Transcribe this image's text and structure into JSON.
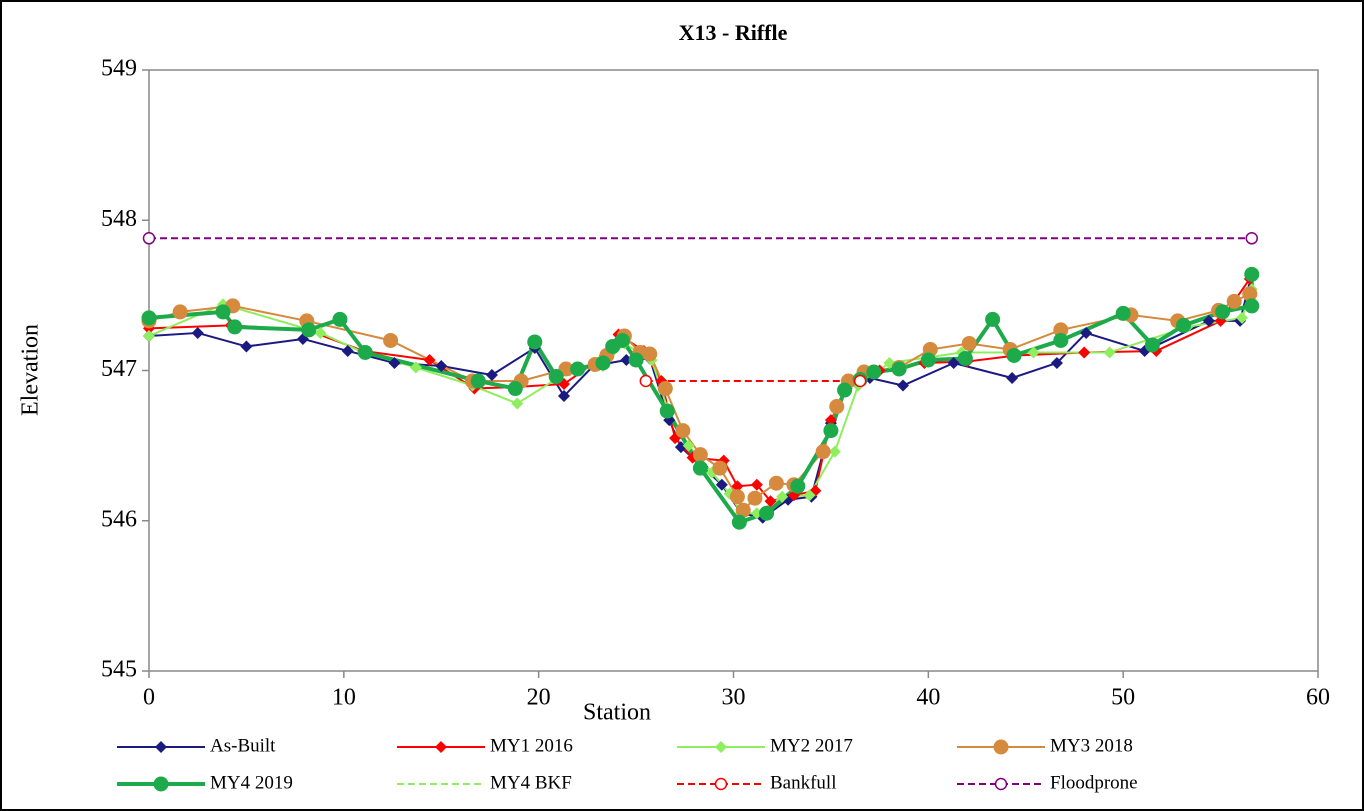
{
  "chart_data": {
    "type": "line",
    "title": "X13 - Riffle",
    "x_label": "Station",
    "y_label": "Elevation",
    "xlim": [
      0,
      60
    ],
    "xticks": [
      0,
      10,
      20,
      30,
      40,
      50,
      60
    ],
    "ylim": [
      545,
      549
    ],
    "yticks": [
      545,
      546,
      547,
      548,
      549
    ],
    "grid": false,
    "legend": "bottom",
    "series": [
      {
        "name": "As-Built",
        "color": "#1a1a80",
        "width": 2,
        "dash": false,
        "marker": "diamond",
        "x": [
          0,
          2.5,
          5,
          7.9,
          10.2,
          12.6,
          15,
          17.6,
          19.8,
          21.3,
          22.8,
          24.5,
          25.7,
          26.7,
          27.3,
          28.4,
          29.4,
          30.4,
          31.5,
          32.8,
          34,
          35,
          35.8,
          37,
          38.7,
          41.3,
          44.3,
          46.6,
          48.1,
          51.1,
          54.4,
          56,
          56.6
        ],
        "values": [
          547.23,
          547.25,
          547.16,
          547.21,
          547.13,
          547.05,
          547.03,
          546.97,
          547.15,
          546.83,
          547.03,
          547.07,
          547.08,
          546.67,
          546.49,
          546.36,
          546.24,
          546.05,
          546.02,
          546.14,
          546.16,
          546.65,
          546.88,
          546.95,
          546.9,
          547.05,
          546.95,
          547.05,
          547.25,
          547.13,
          547.33,
          547.33,
          547.64
        ]
      },
      {
        "name": "MY1 2016",
        "color": "#ff0000",
        "width": 2,
        "dash": false,
        "marker": "diamond",
        "x": [
          0,
          4.2,
          8.1,
          11,
          14.4,
          16.7,
          18.8,
          21.3,
          23.4,
          24.1,
          25.4,
          26.3,
          27,
          27.9,
          29.5,
          30.2,
          31.2,
          31.9,
          33.1,
          34.2,
          35,
          36,
          37.5,
          39.8,
          42,
          44.5,
          48,
          51.7,
          55,
          56.5
        ],
        "values": [
          547.28,
          547.3,
          547.27,
          547.13,
          547.07,
          546.88,
          546.89,
          546.91,
          547.1,
          547.24,
          547.13,
          546.93,
          546.55,
          546.42,
          546.4,
          546.23,
          546.24,
          546.13,
          546.17,
          546.2,
          546.67,
          546.93,
          547.0,
          547.05,
          547.06,
          547.1,
          547.12,
          547.13,
          547.33,
          547.61
        ]
      },
      {
        "name": "MY2 2017",
        "color": "#8fee5e",
        "width": 2,
        "dash": false,
        "marker": "diamond",
        "x": [
          0,
          3.8,
          8.8,
          11,
          13.7,
          16.6,
          18.9,
          21.6,
          23.3,
          24.4,
          25.8,
          26.6,
          27.7,
          28.9,
          29.8,
          30.4,
          31.2,
          32.5,
          33.9,
          35.2,
          36.4,
          38,
          41.7,
          45.4,
          49.3,
          53.3,
          56.1,
          56.6
        ],
        "values": [
          547.23,
          547.44,
          547.25,
          547.12,
          547.02,
          546.9,
          546.78,
          547.0,
          547.03,
          547.18,
          547.07,
          546.75,
          546.5,
          546.32,
          546.18,
          546.05,
          546.05,
          546.16,
          546.17,
          546.46,
          546.9,
          547.05,
          547.12,
          547.12,
          547.12,
          547.29,
          547.35,
          547.54
        ]
      },
      {
        "name": "MY3 2018",
        "color": "#d58a3e",
        "width": 2,
        "dash": false,
        "marker": "circle",
        "x": [
          0,
          1.6,
          4.3,
          8.1,
          12.4,
          16.6,
          19.1,
          21.4,
          22.9,
          23.5,
          24.4,
          25.2,
          25.7,
          26.5,
          27.4,
          28.3,
          29.3,
          30.2,
          30.5,
          31.1,
          32.2,
          33.1,
          34.6,
          35.3,
          35.9,
          36.7,
          38.5,
          40.1,
          42.1,
          44.2,
          46.8,
          50.4,
          52.8,
          54.9,
          55.7,
          56.5
        ],
        "values": [
          547.33,
          547.39,
          547.43,
          547.33,
          547.2,
          546.93,
          546.93,
          547.01,
          547.04,
          547.1,
          547.23,
          547.12,
          547.11,
          546.88,
          546.6,
          546.44,
          546.35,
          546.16,
          546.07,
          546.15,
          546.25,
          546.24,
          546.46,
          546.76,
          546.93,
          546.99,
          547.02,
          547.14,
          547.18,
          547.14,
          547.27,
          547.37,
          547.33,
          547.4,
          547.46,
          547.51
        ]
      },
      {
        "name": "MY4 2019",
        "color": "#1caa4a",
        "width": 4,
        "dash": false,
        "marker": "circle",
        "x": [
          0,
          3.8,
          4.4,
          8.2,
          9.8,
          11.1,
          16.9,
          18.8,
          19.8,
          20.9,
          22,
          23.3,
          23.8,
          24.3,
          25,
          26.6,
          28.3,
          30.3,
          31.7,
          33.3,
          35,
          35.7,
          36.5,
          37.2,
          38.5,
          40,
          41.9,
          43.3,
          44.4,
          46.8,
          50,
          51.5,
          53.1,
          55.1,
          56.6,
          56.6
        ],
        "values": [
          547.35,
          547.39,
          547.29,
          547.27,
          547.34,
          547.12,
          546.93,
          546.88,
          547.19,
          546.96,
          547.01,
          547.05,
          547.16,
          547.2,
          547.07,
          546.73,
          546.35,
          545.99,
          546.05,
          546.23,
          546.6,
          546.87,
          546.94,
          546.99,
          547.01,
          547.07,
          547.08,
          547.34,
          547.1,
          547.2,
          547.38,
          547.17,
          547.3,
          547.39,
          547.43,
          547.64
        ]
      },
      {
        "name": "MY4 BKF",
        "color": "#8fee5e",
        "width": 2,
        "dash": true,
        "marker": "none",
        "x": [],
        "values": []
      },
      {
        "name": "Bankfull",
        "color": "#ff0000",
        "width": 2,
        "dash": true,
        "marker": "open-circle",
        "x": [
          25.5,
          36.5
        ],
        "values": [
          546.93,
          546.93
        ]
      },
      {
        "name": "Floodprone",
        "color": "#800080",
        "width": 2,
        "dash": true,
        "marker": "open-circle",
        "x": [
          0,
          56.6
        ],
        "values": [
          547.88,
          547.88
        ]
      }
    ]
  }
}
